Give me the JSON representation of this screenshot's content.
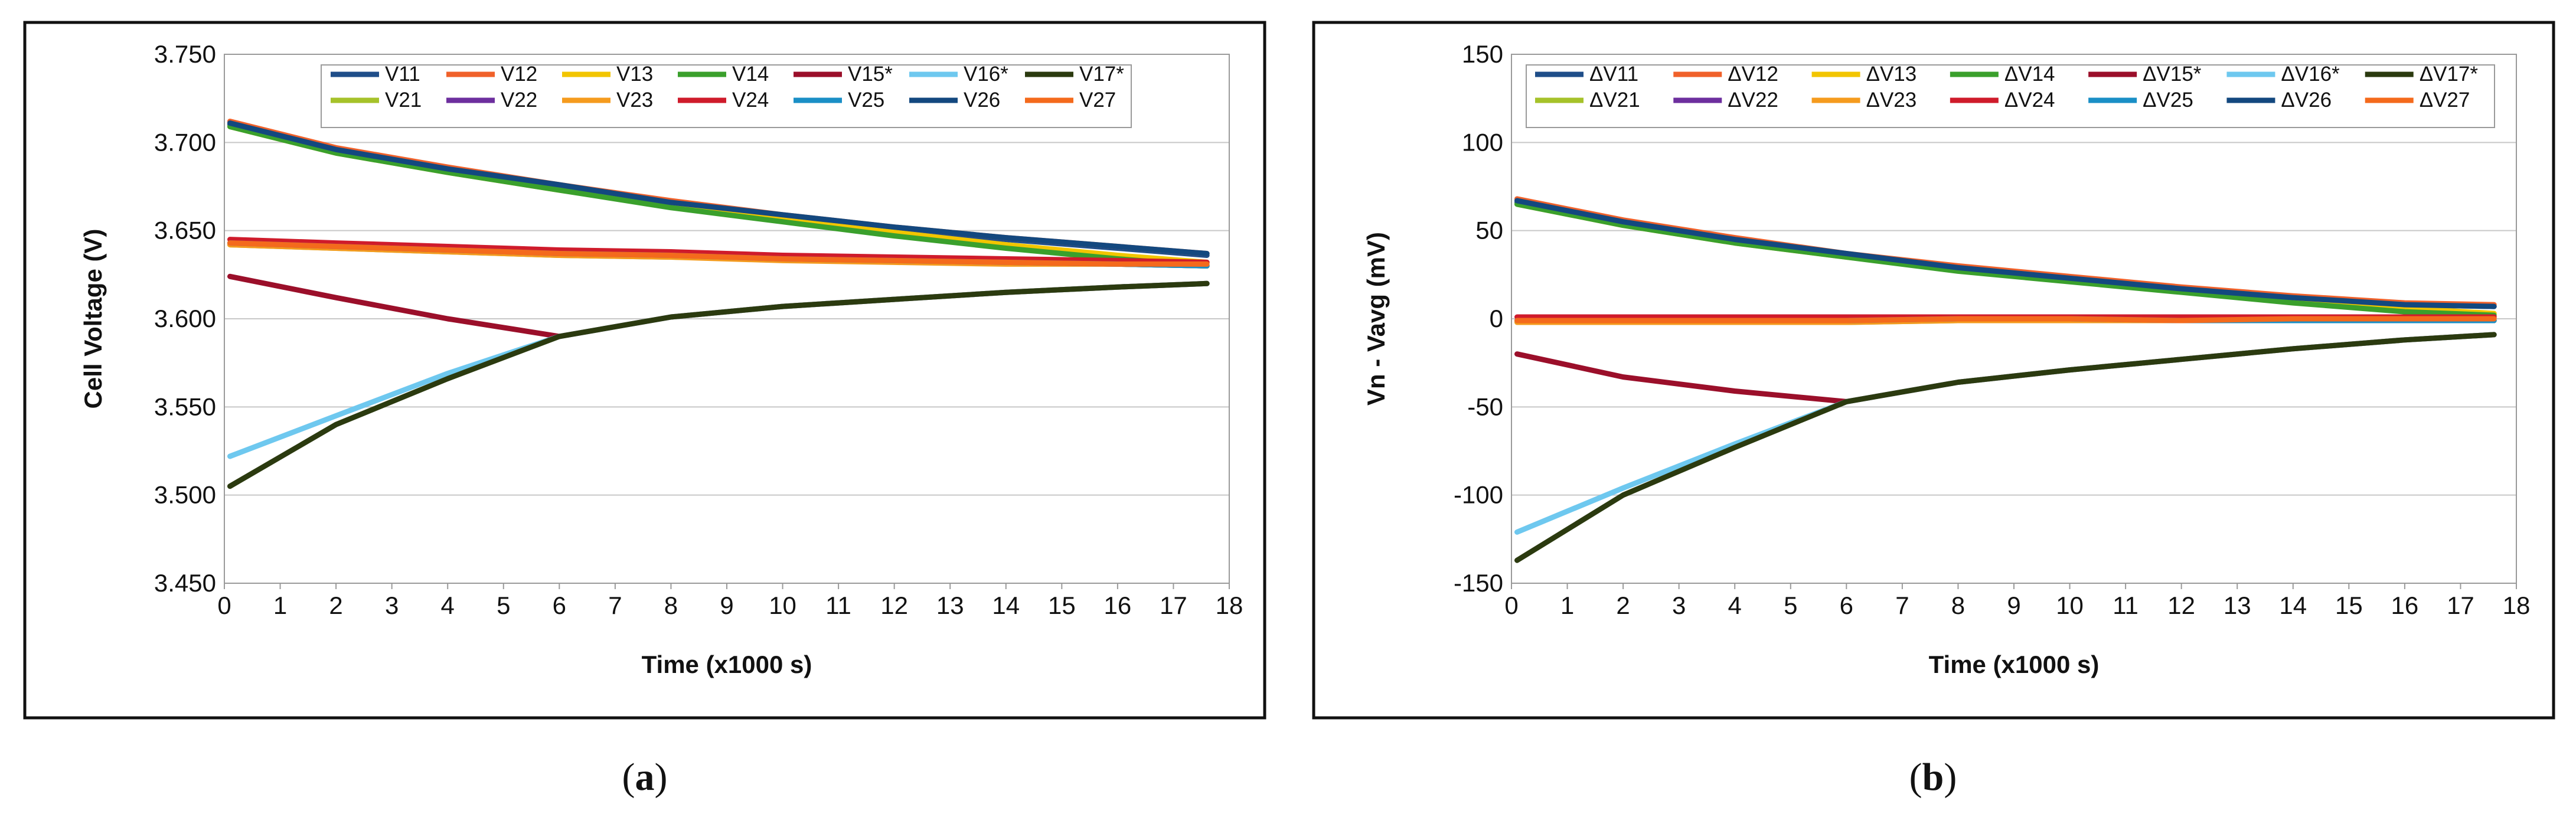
{
  "colors": {
    "V11": "#1f4e89",
    "V12": "#f0612a",
    "V13": "#f2c500",
    "V14": "#3aa02c",
    "V15*": "#9b0f2a",
    "V16*": "#6ec8ef",
    "V17*": "#2b3a0f",
    "V21": "#a6c22a",
    "V22": "#6d2f9e",
    "V23": "#f59b1e",
    "V24": "#cf1b2b",
    "V25": "#1a8fc6",
    "V26": "#13487f",
    "V27": "#f46a1c"
  },
  "chart_data": [
    {
      "id": "a",
      "type": "line",
      "caption": {
        "open": "(",
        "letter": "a",
        "close": ")"
      },
      "xlabel": "Time (x1000 s)",
      "ylabel": "Cell Voltage (V)",
      "xlim": [
        0,
        18
      ],
      "ylim": [
        3.45,
        3.75
      ],
      "xticks": [
        "0",
        "1",
        "2",
        "3",
        "4",
        "5",
        "6",
        "7",
        "8",
        "9",
        "10",
        "11",
        "12",
        "13",
        "14",
        "15",
        "16",
        "17",
        "18"
      ],
      "yticks": [
        "3.450",
        "3.500",
        "3.550",
        "3.600",
        "3.650",
        "3.700",
        "3.750"
      ],
      "legend": [
        "V11",
        "V12",
        "V13",
        "V14",
        "V15*",
        "V16*",
        "V17*",
        "V21",
        "V22",
        "V23",
        "V24",
        "V25",
        "V26",
        "V27"
      ],
      "x": [
        0.1,
        2,
        4,
        6,
        8,
        10,
        12,
        14,
        16,
        17.6
      ],
      "series": [
        {
          "name": "V11",
          "values": [
            3.71,
            3.695,
            3.684,
            3.675,
            3.665,
            3.658,
            3.651,
            3.645,
            3.64,
            3.636
          ]
        },
        {
          "name": "V12",
          "values": [
            3.712,
            3.697,
            3.686,
            3.676,
            3.667,
            3.659,
            3.652,
            3.646,
            3.641,
            3.637
          ]
        },
        {
          "name": "V13",
          "values": [
            3.709,
            3.694,
            3.683,
            3.673,
            3.664,
            3.656,
            3.649,
            3.642,
            3.636,
            3.632
          ]
        },
        {
          "name": "V14",
          "values": [
            3.709,
            3.694,
            3.683,
            3.673,
            3.663,
            3.655,
            3.647,
            3.64,
            3.634,
            3.63
          ]
        },
        {
          "name": "V15*",
          "values": [
            3.624,
            3.612,
            3.6,
            3.59,
            3.601,
            3.607,
            3.611,
            3.615,
            3.618,
            3.62
          ]
        },
        {
          "name": "V16*",
          "values": [
            3.522,
            3.545,
            3.569,
            3.59,
            3.601,
            3.607,
            3.611,
            3.615,
            3.618,
            3.62
          ]
        },
        {
          "name": "V17*",
          "values": [
            3.505,
            3.54,
            3.566,
            3.59,
            3.601,
            3.607,
            3.611,
            3.615,
            3.618,
            3.62
          ]
        },
        {
          "name": "V21",
          "values": [
            3.642,
            3.64,
            3.638,
            3.636,
            3.635,
            3.634,
            3.633,
            3.632,
            3.631,
            3.63
          ]
        },
        {
          "name": "V22",
          "values": [
            3.643,
            3.641,
            3.639,
            3.637,
            3.636,
            3.634,
            3.633,
            3.632,
            3.631,
            3.63
          ]
        },
        {
          "name": "V23",
          "values": [
            3.642,
            3.64,
            3.638,
            3.636,
            3.635,
            3.633,
            3.632,
            3.631,
            3.631,
            3.63
          ]
        },
        {
          "name": "V24",
          "values": [
            3.645,
            3.643,
            3.641,
            3.639,
            3.638,
            3.636,
            3.635,
            3.634,
            3.633,
            3.632
          ]
        },
        {
          "name": "V25",
          "values": [
            3.643,
            3.641,
            3.639,
            3.637,
            3.636,
            3.634,
            3.633,
            3.632,
            3.631,
            3.63
          ]
        },
        {
          "name": "V26",
          "values": [
            3.711,
            3.696,
            3.685,
            3.676,
            3.666,
            3.659,
            3.652,
            3.646,
            3.641,
            3.637
          ]
        },
        {
          "name": "V27",
          "values": [
            3.643,
            3.641,
            3.639,
            3.637,
            3.636,
            3.634,
            3.633,
            3.632,
            3.631,
            3.631
          ]
        }
      ]
    },
    {
      "id": "b",
      "type": "line",
      "caption": {
        "open": "(",
        "letter": "b",
        "close": ")"
      },
      "xlabel": "Time (x1000 s)",
      "ylabel": "Vn - Vavg  (mV)",
      "xlim": [
        0,
        18
      ],
      "ylim": [
        -150,
        150
      ],
      "xticks": [
        "0",
        "1",
        "2",
        "3",
        "4",
        "5",
        "6",
        "7",
        "8",
        "9",
        "10",
        "11",
        "12",
        "13",
        "14",
        "15",
        "16",
        "17",
        "18"
      ],
      "yticks": [
        "-150",
        "-100",
        "-50",
        "0",
        "50",
        "100",
        "150"
      ],
      "legend": [
        "ΔV11",
        "ΔV12",
        "ΔV13",
        "ΔV14",
        "ΔV15*",
        "ΔV16*",
        "ΔV17*",
        "ΔV21",
        "ΔV22",
        "ΔV23",
        "ΔV24",
        "ΔV25",
        "ΔV26",
        "ΔV27"
      ],
      "x": [
        0.1,
        2,
        4,
        6,
        8,
        10,
        12,
        14,
        16,
        17.6
      ],
      "series": [
        {
          "name": "ΔV11",
          "values": [
            66,
            54,
            44,
            36,
            29,
            23,
            17,
            12,
            8,
            7
          ]
        },
        {
          "name": "ΔV12",
          "values": [
            68,
            56,
            46,
            37,
            30,
            24,
            18,
            13,
            9,
            8
          ]
        },
        {
          "name": "ΔV13",
          "values": [
            65,
            53,
            43,
            35,
            28,
            22,
            16,
            11,
            6,
            3
          ]
        },
        {
          "name": "ΔV14",
          "values": [
            65,
            53,
            43,
            35,
            27,
            21,
            15,
            9,
            4,
            2
          ]
        },
        {
          "name": "ΔV15*",
          "values": [
            -20,
            -33,
            -41,
            -47,
            -36,
            -29,
            -23,
            -17,
            -12,
            -9
          ]
        },
        {
          "name": "ΔV16*",
          "values": [
            -121,
            -96,
            -71,
            -47,
            -36,
            -29,
            -23,
            -17,
            -12,
            -9
          ]
        },
        {
          "name": "ΔV17*",
          "values": [
            -137,
            -100,
            -73,
            -47,
            -36,
            -29,
            -23,
            -17,
            -12,
            -9
          ]
        },
        {
          "name": "ΔV21",
          "values": [
            -2,
            -2,
            -2,
            -2,
            -1,
            -1,
            -1,
            -1,
            -1,
            -1
          ]
        },
        {
          "name": "ΔV22",
          "values": [
            -1,
            -1,
            -1,
            -1,
            0,
            0,
            -1,
            -1,
            -1,
            -1
          ]
        },
        {
          "name": "ΔV23",
          "values": [
            -2,
            -2,
            -2,
            -2,
            -1,
            -1,
            -1,
            -1,
            -1,
            -1
          ]
        },
        {
          "name": "ΔV24",
          "values": [
            1,
            1,
            1,
            1,
            1,
            1,
            1,
            1,
            1,
            1
          ]
        },
        {
          "name": "ΔV25",
          "values": [
            -1,
            -1,
            -1,
            -1,
            0,
            0,
            -1,
            -1,
            -1,
            -1
          ]
        },
        {
          "name": "ΔV26",
          "values": [
            67,
            55,
            45,
            37,
            29,
            23,
            17,
            12,
            8,
            7
          ]
        },
        {
          "name": "ΔV27",
          "values": [
            -1,
            -1,
            -1,
            -1,
            0,
            0,
            -1,
            0,
            0,
            0
          ]
        }
      ]
    }
  ]
}
